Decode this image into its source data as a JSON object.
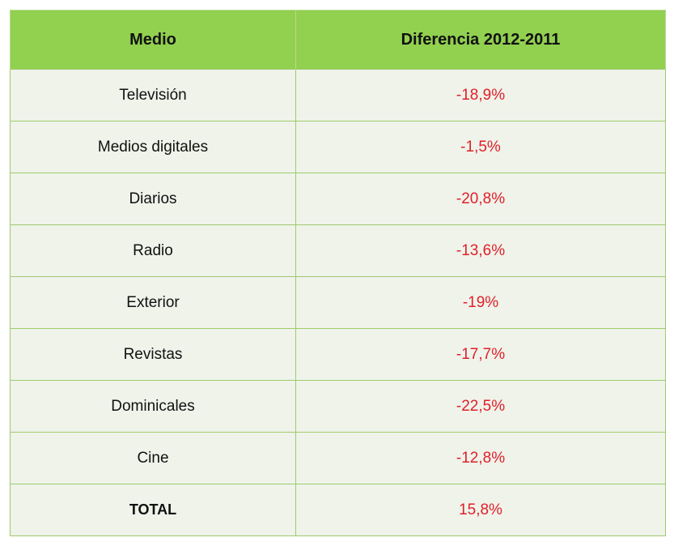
{
  "table": {
    "headers": [
      "Medio",
      "Diferencia 2012-2011"
    ],
    "rows": [
      {
        "medio": "Televisión",
        "diferencia": "-18,9%"
      },
      {
        "medio": "Medios digitales",
        "diferencia": "-1,5%"
      },
      {
        "medio": "Diarios",
        "diferencia": "-20,8%"
      },
      {
        "medio": "Radio",
        "diferencia": "-13,6%"
      },
      {
        "medio": "Exterior",
        "diferencia": "-19%"
      },
      {
        "medio": "Revistas",
        "diferencia": "-17,7%"
      },
      {
        "medio": "Dominicales",
        "diferencia": "-22,5%"
      },
      {
        "medio": "Cine",
        "diferencia": "-12,8%"
      },
      {
        "medio": "TOTAL",
        "diferencia": "15,8%"
      }
    ]
  },
  "colors": {
    "header_background": "#92d050",
    "cell_background": "#eff3ea",
    "border": "#9fca6d",
    "value_text": "#e0202a"
  }
}
